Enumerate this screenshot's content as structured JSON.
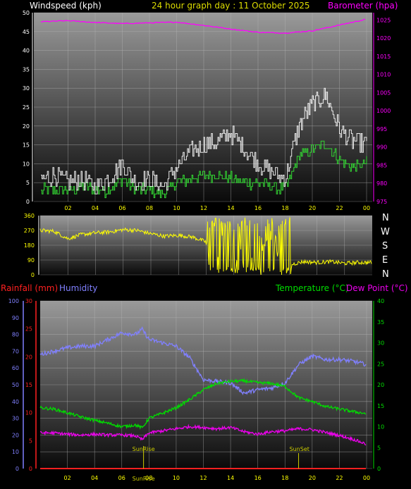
{
  "header": {
    "left_title": "Windspeed (kph)",
    "center_title": "24 hour graph day : 11 October 2025",
    "right_title": "Barometer (hpa)"
  },
  "middle": {
    "compass_labels": [
      "N",
      "W",
      "S",
      "E",
      "N"
    ]
  },
  "bottom_header": {
    "rain_label": "Rainfall (mm)",
    "humidity_label": "Humidity",
    "temp_label": "Temperature (°C)",
    "dew_label": "Dew Point (°C)"
  },
  "annotations": {
    "sunrise_label": "SunRise",
    "sunset_label": "SunSet",
    "sunrise_axis_label": "SunRise"
  },
  "colors": {
    "wind_avg": "#33d633",
    "wind_gust": "#ffffff",
    "barometer": "#ff00ff",
    "direction": "#ffff00",
    "rain": "#ff2020",
    "humidity": "#8080ff",
    "temperature": "#00dd00",
    "dew_point": "#ee00ee",
    "annotation": "#cccc00"
  },
  "chart_data": [
    {
      "type": "line",
      "name": "wind-barometer",
      "x_ticks": [
        "02",
        "04",
        "06",
        "08",
        "10",
        "12",
        "14",
        "16",
        "18",
        "20",
        "22",
        "00"
      ],
      "xlim_hours": [
        0,
        24
      ],
      "ylim_left": [
        0,
        50
      ],
      "yticks_left": [
        0,
        5,
        10,
        15,
        20,
        25,
        30,
        35,
        40,
        45,
        50
      ],
      "ylim_right": [
        975,
        1027
      ],
      "yticks_right": [
        975,
        980,
        985,
        990,
        995,
        1000,
        1005,
        1010,
        1015,
        1020,
        1025
      ],
      "grid": true,
      "series": [
        {
          "name": "Windspeed (kph)",
          "key": "wind_avg",
          "axis": "left",
          "x": [
            0,
            1,
            2,
            3,
            4,
            5,
            6,
            7,
            8,
            9,
            10,
            11,
            12,
            13,
            14,
            15,
            16,
            17,
            18,
            19,
            20,
            21,
            22,
            23,
            24
          ],
          "values": [
            3,
            3,
            3,
            4,
            3,
            3,
            6,
            3,
            3,
            2,
            5,
            6,
            7,
            7,
            6,
            5,
            5,
            4,
            3,
            12,
            14,
            15,
            11,
            9,
            10
          ]
        },
        {
          "name": "Gust",
          "key": "wind_gust",
          "axis": "left",
          "x": [
            0,
            1,
            2,
            3,
            4,
            5,
            6,
            7,
            8,
            9,
            10,
            11,
            12,
            13,
            14,
            15,
            16,
            17,
            18,
            19,
            20,
            21,
            22,
            23,
            24
          ],
          "values": [
            6,
            7,
            5,
            6,
            4,
            6,
            10,
            5,
            6,
            4,
            9,
            13,
            15,
            16,
            18,
            14,
            10,
            8,
            6,
            20,
            26,
            28,
            19,
            16,
            15
          ]
        },
        {
          "name": "Barometer (hpa)",
          "key": "barometer",
          "axis": "right",
          "x": [
            0,
            2,
            4,
            6,
            8,
            10,
            12,
            14,
            16,
            18,
            20,
            22,
            24
          ],
          "values": [
            1024.5,
            1024.8,
            1024.3,
            1024.0,
            1024.2,
            1024.4,
            1023.5,
            1022.5,
            1021.6,
            1021.4,
            1022.0,
            1023.6,
            1025.2
          ]
        }
      ]
    },
    {
      "type": "scatter",
      "name": "wind-direction",
      "xlim_hours": [
        0,
        24
      ],
      "ylim": [
        0,
        360
      ],
      "yticks": [
        0,
        90,
        180,
        270,
        360
      ],
      "x": [
        0,
        1,
        2,
        3,
        4,
        5,
        6,
        7,
        8,
        9,
        10,
        11,
        12,
        13,
        14,
        15,
        16,
        17,
        18,
        19,
        20,
        21,
        22,
        23,
        24
      ],
      "values": [
        270,
        265,
        220,
        245,
        255,
        260,
        275,
        270,
        250,
        235,
        240,
        230,
        200,
        180,
        175,
        170,
        120,
        140,
        60,
        80,
        75,
        80,
        70,
        75,
        75
      ]
    },
    {
      "type": "line",
      "name": "temp-humidity",
      "x_ticks": [
        "02",
        "04",
        "06",
        "08",
        "10",
        "12",
        "14",
        "16",
        "18",
        "20",
        "22",
        "00"
      ],
      "xlim_hours": [
        0,
        24
      ],
      "ylim_humidity": [
        0,
        100
      ],
      "yticks_humidity": [
        0,
        10,
        20,
        30,
        40,
        50,
        60,
        70,
        80,
        90,
        100
      ],
      "ylim_rain": [
        0,
        30
      ],
      "yticks_rain": [
        0,
        5,
        10,
        15,
        20,
        25,
        30
      ],
      "ylim_temp": [
        0,
        40
      ],
      "yticks_temp": [
        0,
        5,
        10,
        15,
        20,
        25,
        30,
        35,
        40
      ],
      "grid": true,
      "sunrise_hour": 7.6,
      "sunset_hour": 19.0,
      "series": [
        {
          "name": "Humidity",
          "key": "humidity",
          "axis": "humidity",
          "x": [
            0,
            1,
            2,
            3,
            4,
            5,
            6,
            7,
            7.5,
            8,
            9,
            10,
            11,
            12,
            13,
            14,
            15,
            16,
            17,
            18,
            19,
            20,
            21,
            22,
            23,
            24
          ],
          "values": [
            68,
            70,
            72,
            73,
            73,
            77,
            81,
            80,
            83,
            77,
            75,
            73,
            66,
            53,
            52,
            51,
            45,
            47,
            48,
            51,
            62,
            67,
            65,
            65,
            64,
            62
          ]
        },
        {
          "name": "Temperature (°C)",
          "key": "temperature",
          "axis": "temp",
          "x": [
            0,
            1,
            2,
            3,
            4,
            5,
            6,
            7,
            7.5,
            8,
            9,
            10,
            11,
            12,
            13,
            14,
            15,
            16,
            17,
            18,
            19,
            20,
            21,
            22,
            23,
            24
          ],
          "values": [
            14.5,
            14.2,
            13.3,
            12.3,
            11.5,
            10.8,
            10.0,
            10.4,
            9.7,
            12.0,
            13.2,
            14.5,
            16.5,
            18.8,
            20.3,
            20.8,
            20.9,
            20.5,
            20.3,
            19.6,
            16.9,
            16.0,
            14.8,
            14.2,
            13.6,
            13.1
          ]
        },
        {
          "name": "Dew Point (°C)",
          "key": "dew_point",
          "axis": "temp",
          "x": [
            0,
            1,
            2,
            3,
            4,
            5,
            6,
            7,
            7.5,
            8,
            9,
            10,
            11,
            12,
            13,
            14,
            15,
            16,
            17,
            18,
            19,
            20,
            21,
            22,
            23,
            24
          ],
          "values": [
            8.5,
            8.5,
            8.2,
            8.0,
            8.2,
            8.0,
            8.0,
            7.8,
            6.9,
            8.5,
            9.0,
            9.5,
            10.0,
            9.8,
            9.5,
            9.8,
            8.8,
            8.2,
            8.8,
            9.0,
            9.5,
            9.3,
            8.6,
            7.9,
            7.0,
            5.8
          ]
        },
        {
          "name": "Rainfall (mm)",
          "key": "rain",
          "axis": "rain",
          "x": [
            0,
            24
          ],
          "values": [
            0,
            0
          ]
        }
      ]
    }
  ]
}
